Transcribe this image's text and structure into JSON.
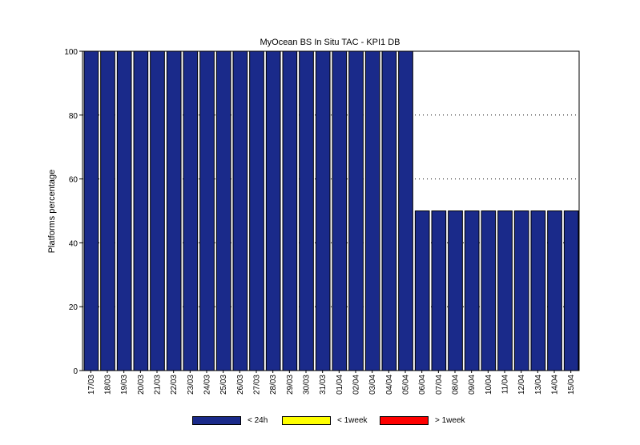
{
  "chart_data": {
    "type": "bar",
    "title": "MyOcean  BS In Situ TAC - KPI1  DB",
    "xlabel": "",
    "ylabel": "Platforms percentage",
    "ylim": [
      0,
      100
    ],
    "yticks": [
      0,
      20,
      40,
      60,
      80,
      100
    ],
    "grid": "dotted horizontal",
    "legend_position": "bottom",
    "categories": [
      "17/03",
      "18/03",
      "19/03",
      "20/03",
      "21/03",
      "22/03",
      "23/03",
      "24/03",
      "25/03",
      "26/03",
      "27/03",
      "28/03",
      "29/03",
      "30/03",
      "31/03",
      "01/04",
      "02/04",
      "03/04",
      "04/04",
      "05/04",
      "06/04",
      "07/04",
      "08/04",
      "09/04",
      "10/04",
      "11/04",
      "12/04",
      "13/04",
      "14/04",
      "15/04"
    ],
    "series": [
      {
        "name": "< 24h",
        "color": "#1a2a8a",
        "values": [
          100,
          100,
          100,
          100,
          100,
          100,
          100,
          100,
          100,
          100,
          100,
          100,
          100,
          100,
          100,
          100,
          100,
          100,
          100,
          100,
          50,
          50,
          50,
          50,
          50,
          50,
          50,
          50,
          50,
          50
        ]
      },
      {
        "name": "< 1week",
        "color": "#ffff00",
        "values": [
          0,
          0,
          0,
          0,
          0,
          0,
          0,
          0,
          0,
          0,
          0,
          0,
          0,
          0,
          0,
          0,
          0,
          0,
          0,
          0,
          0,
          0,
          0,
          0,
          0,
          0,
          0,
          0,
          0,
          0
        ]
      },
      {
        "name": "> 1week",
        "color": "#ff0000",
        "values": [
          0,
          0,
          0,
          0,
          0,
          0,
          0,
          0,
          0,
          0,
          0,
          0,
          0,
          0,
          0,
          0,
          0,
          0,
          0,
          0,
          0,
          0,
          0,
          0,
          0,
          0,
          0,
          0,
          0,
          0
        ]
      }
    ]
  }
}
